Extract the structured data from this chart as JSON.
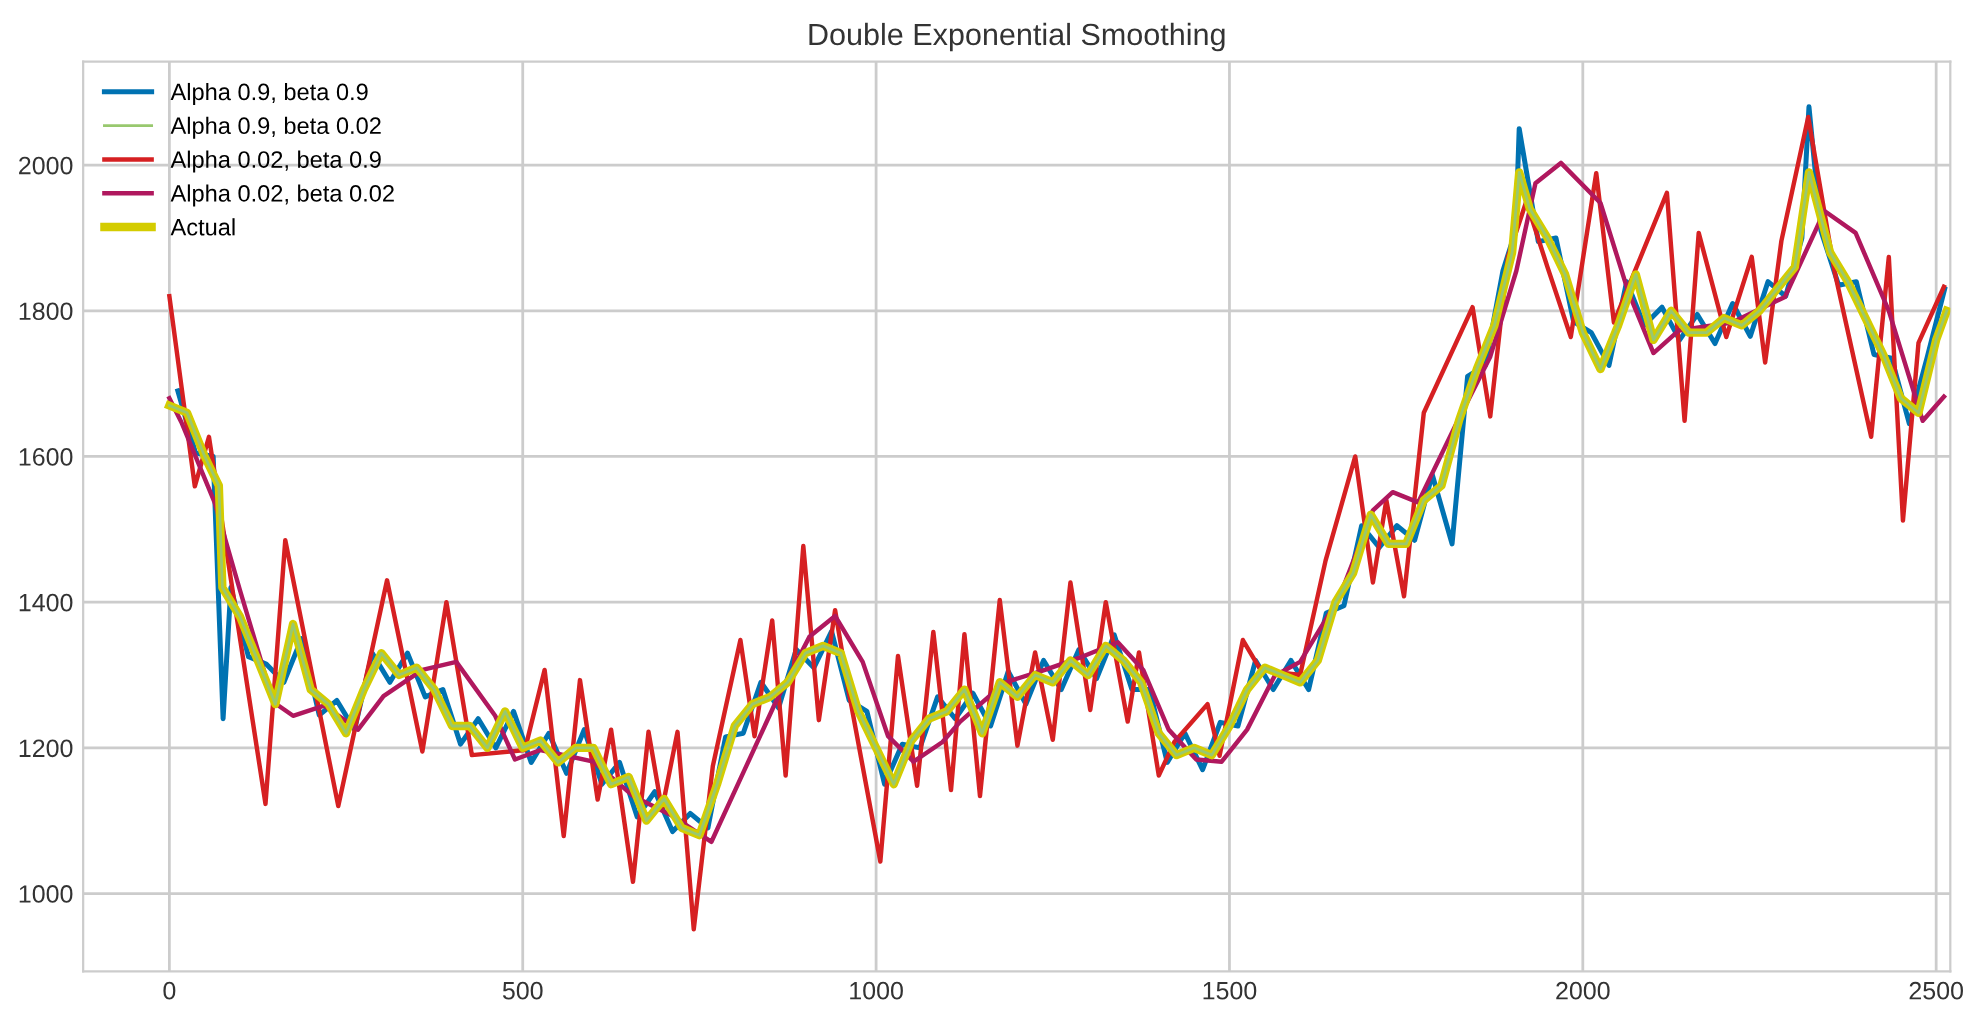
{
  "chart_data": {
    "type": "line",
    "title": "Double Exponential Smoothing",
    "xlim": [
      -122,
      2520
    ],
    "ylim": [
      893,
      2142
    ],
    "xticks": [
      0,
      500,
      1000,
      1500,
      2000,
      2500
    ],
    "yticks": [
      1000,
      1200,
      1400,
      1600,
      1800,
      2000
    ],
    "grid": true,
    "legend": "top left",
    "series": [
      {
        "name": "Alpha 0.9, beta 0.9",
        "color": "#0072b2",
        "x": [
          12,
          37,
          62,
          76,
          87,
          112,
          137,
          162,
          187,
          212,
          237,
          262,
          287,
          312,
          337,
          362,
          387,
          412,
          437,
          462,
          487,
          512,
          537,
          562,
          587,
          612,
          637,
          662,
          687,
          712,
          737,
          762,
          787,
          812,
          837,
          862,
          887,
          912,
          937,
          962,
          987,
          1012,
          1037,
          1062,
          1087,
          1112,
          1137,
          1162,
          1187,
          1212,
          1237,
          1262,
          1287,
          1312,
          1337,
          1362,
          1387,
          1412,
          1437,
          1462,
          1487,
          1512,
          1537,
          1562,
          1587,
          1612,
          1637,
          1662,
          1687,
          1712,
          1737,
          1762,
          1787,
          1815,
          1837,
          1862,
          1887,
          1905,
          1910,
          1937,
          1962,
          1987,
          2012,
          2037,
          2062,
          2087,
          2112,
          2137,
          2162,
          2187,
          2212,
          2237,
          2262,
          2287,
          2310,
          2320,
          2337,
          2362,
          2387,
          2412,
          2437,
          2462,
          2487,
          2512
        ],
        "values": [
          1690,
          1605,
          1600,
          1240,
          1420,
          1325,
          1315,
          1290,
          1350,
          1245,
          1265,
          1225,
          1330,
          1290,
          1330,
          1270,
          1280,
          1205,
          1240,
          1200,
          1250,
          1180,
          1220,
          1165,
          1225,
          1150,
          1180,
          1105,
          1140,
          1085,
          1110,
          1090,
          1215,
          1220,
          1290,
          1255,
          1335,
          1310,
          1360,
          1265,
          1250,
          1150,
          1205,
          1200,
          1270,
          1240,
          1275,
          1230,
          1305,
          1260,
          1320,
          1280,
          1335,
          1295,
          1355,
          1280,
          1280,
          1180,
          1220,
          1170,
          1235,
          1230,
          1320,
          1280,
          1320,
          1280,
          1385,
          1395,
          1505,
          1475,
          1505,
          1485,
          1575,
          1480,
          1710,
          1725,
          1855,
          1910,
          2050,
          1895,
          1900,
          1785,
          1770,
          1725,
          1840,
          1780,
          1805,
          1760,
          1795,
          1755,
          1810,
          1765,
          1840,
          1820,
          1900,
          2080,
          1910,
          1835,
          1840,
          1740,
          1735,
          1645,
          1735,
          1830
        ]
      },
      {
        "name": "Alpha 0.9, beta 0.02",
        "color": "#98c86e",
        "x": [
          0,
          25,
          50,
          70,
          75,
          100,
          125,
          150,
          175,
          200,
          225,
          250,
          275,
          300,
          325,
          350,
          375,
          400,
          425,
          450,
          475,
          500,
          525,
          550,
          575,
          600,
          625,
          650,
          675,
          700,
          725,
          750,
          775,
          800,
          825,
          850,
          875,
          900,
          925,
          950,
          975,
          1000,
          1025,
          1050,
          1075,
          1100,
          1125,
          1150,
          1175,
          1200,
          1225,
          1250,
          1275,
          1300,
          1325,
          1350,
          1375,
          1400,
          1425,
          1450,
          1475,
          1500,
          1525,
          1550,
          1575,
          1600,
          1625,
          1650,
          1675,
          1700,
          1725,
          1750,
          1775,
          1800,
          1825,
          1850,
          1875,
          1900,
          1910,
          1925,
          1950,
          1975,
          2000,
          2025,
          2050,
          2075,
          2100,
          2125,
          2150,
          2175,
          2200,
          2225,
          2250,
          2275,
          2300,
          2320,
          2350,
          2375,
          2400,
          2425,
          2450,
          2475,
          2500,
          2515
        ],
        "values": [
          1670,
          1660,
          1600,
          1560,
          1420,
          1380,
          1320,
          1260,
          1370,
          1280,
          1260,
          1220,
          1280,
          1330,
          1300,
          1310,
          1280,
          1230,
          1230,
          1200,
          1250,
          1200,
          1210,
          1180,
          1200,
          1200,
          1150,
          1160,
          1100,
          1130,
          1090,
          1080,
          1150,
          1230,
          1260,
          1270,
          1290,
          1330,
          1340,
          1330,
          1250,
          1200,
          1150,
          1210,
          1240,
          1250,
          1280,
          1220,
          1290,
          1270,
          1300,
          1290,
          1320,
          1300,
          1340,
          1320,
          1290,
          1220,
          1190,
          1200,
          1190,
          1230,
          1280,
          1310,
          1300,
          1290,
          1320,
          1400,
          1440,
          1520,
          1480,
          1480,
          1540,
          1560,
          1650,
          1720,
          1780,
          1880,
          1990,
          1940,
          1900,
          1850,
          1770,
          1720,
          1780,
          1850,
          1760,
          1800,
          1770,
          1770,
          1790,
          1780,
          1800,
          1830,
          1860,
          1990,
          1880,
          1840,
          1790,
          1740,
          1680,
          1660,
          1760,
          1800
        ]
      },
      {
        "name": "Alpha 0.02, beta 0.9",
        "color": "#d62022",
        "x": [
          0,
          36,
          56,
          136,
          164,
          239,
          308,
          358,
          392,
          428,
          503,
          531,
          558,
          581,
          606,
          625,
          656,
          678,
          697,
          719,
          742,
          769,
          808,
          828,
          853,
          872,
          897,
          919,
          942,
          961,
          1006,
          1031,
          1058,
          1081,
          1106,
          1125,
          1147,
          1175,
          1200,
          1225,
          1250,
          1275,
          1303,
          1325,
          1356,
          1372,
          1400,
          1422,
          1469,
          1486,
          1519,
          1544,
          1600,
          1636,
          1678,
          1703,
          1722,
          1747,
          1775,
          1844,
          1869,
          1894,
          1920,
          1950,
          1983,
          2019,
          2044,
          2119,
          2144,
          2164,
          2203,
          2239,
          2258,
          2281,
          2319,
          2356,
          2408,
          2433,
          2453,
          2475,
          2511
        ],
        "values": [
          1820,
          1559,
          1627,
          1123,
          1485,
          1120,
          1430,
          1195,
          1400,
          1190,
          1197,
          1307,
          1079,
          1293,
          1129,
          1225,
          1016,
          1222,
          1115,
          1222,
          951,
          1175,
          1348,
          1216,
          1375,
          1162,
          1477,
          1238,
          1389,
          1279,
          1044,
          1326,
          1148,
          1359,
          1142,
          1356,
          1134,
          1403,
          1203,
          1331,
          1211,
          1427,
          1252,
          1400,
          1236,
          1331,
          1162,
          1208,
          1260,
          1189,
          1348,
          1307,
          1300,
          1457,
          1600,
          1427,
          1540,
          1408,
          1660,
          1805,
          1655,
          1874,
          1950,
          1860,
          1764,
          1989,
          1784,
          1962,
          1649,
          1907,
          1764,
          1874,
          1729,
          1896,
          2066,
          1855,
          1627,
          1874,
          1512,
          1756,
          1833
        ]
      },
      {
        "name": "Alpha 0.02, beta 0.02",
        "color": "#b0185e",
        "x": [
          0,
          17,
          64,
          100,
          147,
          175,
          219,
          267,
          303,
          358,
          406,
          461,
          489,
          525,
          600,
          656,
          711,
          767,
          814,
          858,
          906,
          942,
          981,
          1017,
          1053,
          1094,
          1119,
          1183,
          1239,
          1294,
          1342,
          1378,
          1414,
          1453,
          1489,
          1525,
          1564,
          1600,
          1656,
          1703,
          1731,
          1767,
          1822,
          1869,
          1906,
          1933,
          1969,
          2025,
          2064,
          2100,
          2136,
          2211,
          2286,
          2342,
          2386,
          2433,
          2481,
          2511
        ],
        "values": [
          1680,
          1647,
          1537,
          1416,
          1263,
          1244,
          1258,
          1225,
          1271,
          1307,
          1318,
          1244,
          1184,
          1197,
          1181,
          1134,
          1107,
          1071,
          1170,
          1263,
          1353,
          1381,
          1318,
          1216,
          1181,
          1208,
          1236,
          1290,
          1307,
          1326,
          1345,
          1307,
          1225,
          1184,
          1181,
          1225,
          1299,
          1318,
          1408,
          1526,
          1551,
          1537,
          1647,
          1737,
          1855,
          1975,
          2003,
          1948,
          1827,
          1742,
          1773,
          1784,
          1819,
          1937,
          1907,
          1800,
          1649,
          1682
        ]
      },
      {
        "name": "Actual",
        "color": "#d4cc00",
        "x": [
          0,
          25,
          50,
          70,
          75,
          100,
          125,
          150,
          175,
          200,
          225,
          250,
          275,
          300,
          325,
          350,
          375,
          400,
          425,
          450,
          475,
          500,
          525,
          550,
          575,
          600,
          625,
          650,
          675,
          700,
          725,
          750,
          775,
          800,
          825,
          850,
          875,
          900,
          925,
          950,
          975,
          1000,
          1025,
          1050,
          1075,
          1100,
          1125,
          1150,
          1175,
          1200,
          1225,
          1250,
          1275,
          1300,
          1325,
          1350,
          1375,
          1400,
          1425,
          1450,
          1475,
          1500,
          1525,
          1550,
          1575,
          1600,
          1625,
          1650,
          1675,
          1700,
          1725,
          1750,
          1775,
          1800,
          1825,
          1850,
          1875,
          1900,
          1910,
          1925,
          1950,
          1975,
          2000,
          2025,
          2050,
          2075,
          2100,
          2125,
          2150,
          2175,
          2200,
          2225,
          2250,
          2275,
          2300,
          2320,
          2350,
          2375,
          2400,
          2425,
          2450,
          2475,
          2500,
          2515
        ],
        "values": [
          1670,
          1660,
          1600,
          1560,
          1420,
          1380,
          1320,
          1260,
          1370,
          1280,
          1260,
          1220,
          1280,
          1330,
          1300,
          1310,
          1280,
          1230,
          1230,
          1200,
          1250,
          1200,
          1210,
          1180,
          1200,
          1200,
          1150,
          1160,
          1100,
          1130,
          1090,
          1080,
          1150,
          1230,
          1260,
          1270,
          1290,
          1330,
          1340,
          1330,
          1250,
          1200,
          1150,
          1210,
          1240,
          1250,
          1280,
          1220,
          1290,
          1270,
          1300,
          1290,
          1320,
          1300,
          1340,
          1320,
          1290,
          1220,
          1190,
          1200,
          1190,
          1230,
          1280,
          1310,
          1300,
          1290,
          1320,
          1400,
          1440,
          1520,
          1480,
          1480,
          1540,
          1560,
          1650,
          1720,
          1780,
          1880,
          1990,
          1940,
          1900,
          1850,
          1770,
          1720,
          1780,
          1850,
          1760,
          1800,
          1770,
          1770,
          1790,
          1780,
          1800,
          1830,
          1860,
          1990,
          1880,
          1840,
          1790,
          1740,
          1680,
          1660,
          1760,
          1800
        ]
      }
    ]
  }
}
